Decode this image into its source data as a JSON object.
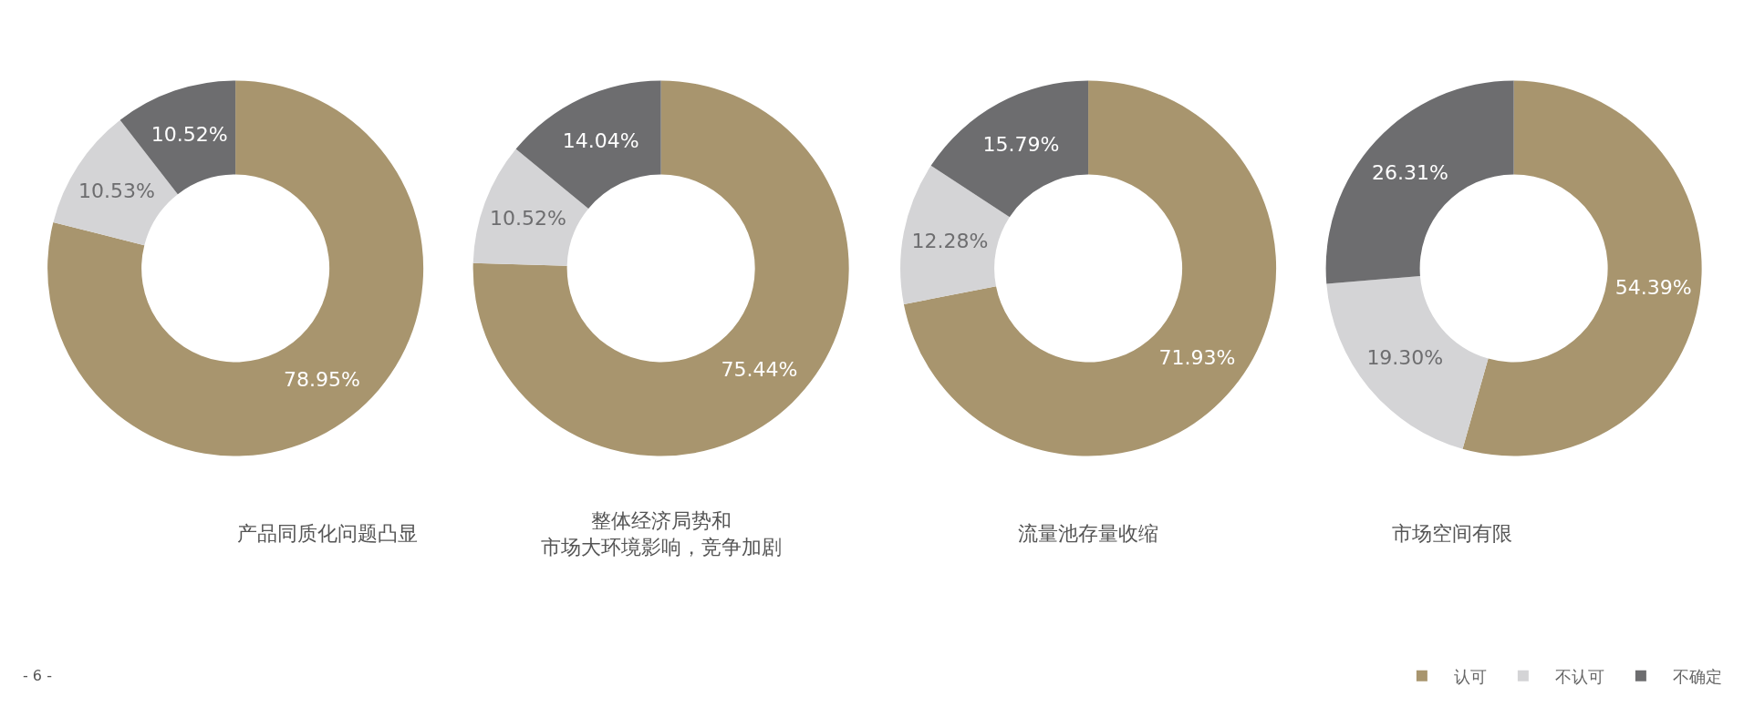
{
  "chart_data": [
    {
      "type": "donut",
      "title": "产品同质化问题凸显",
      "categories": [
        "认可",
        "不确定",
        "不认可"
      ],
      "values": [
        78.95,
        10.52,
        10.53
      ],
      "value_labels": [
        "78.95%",
        "10.52%",
        "10.53%"
      ],
      "colors": [
        "#a8956e",
        "#6d6d6f",
        "#d4d4d6"
      ],
      "annotations": [
        "- 6 -"
      ],
      "legend": "bottom right"
    },
    {
      "type": "donut",
      "title": "整体经济局势和市场大环境影响，竞争加剧",
      "categories": [
        null,
        null,
        null
      ],
      "values": [
        75.44,
        14.04,
        10.52
      ],
      "value_labels": [
        "75.44%",
        "14.04%",
        "10.52%"
      ],
      "colors": [
        "#a8956e",
        "#6d6d6f",
        "#d4d4d6"
      ]
    },
    {
      "type": "donut",
      "title": "流量池存量收缩",
      "categories": [
        null,
        null,
        null
      ],
      "values": [
        71.93,
        15.79,
        12.28
      ],
      "value_labels": [
        "71.93%",
        "15.79%",
        "12.28%"
      ],
      "colors": [
        "#a8956e",
        "#6d6d6f",
        "#d4d4d6"
      ]
    },
    {
      "type": "donut",
      "title": "市场空间有限",
      "categories": [
        null,
        null,
        null
      ],
      "values": [
        54.39,
        26.31,
        19.3
      ],
      "value_labels": [
        "54.39%",
        "26.31%",
        "19.30%"
      ],
      "colors": [
        "#a8956e",
        "#6d6d6f",
        "#d4d4d6"
      ]
    }
  ]
}
